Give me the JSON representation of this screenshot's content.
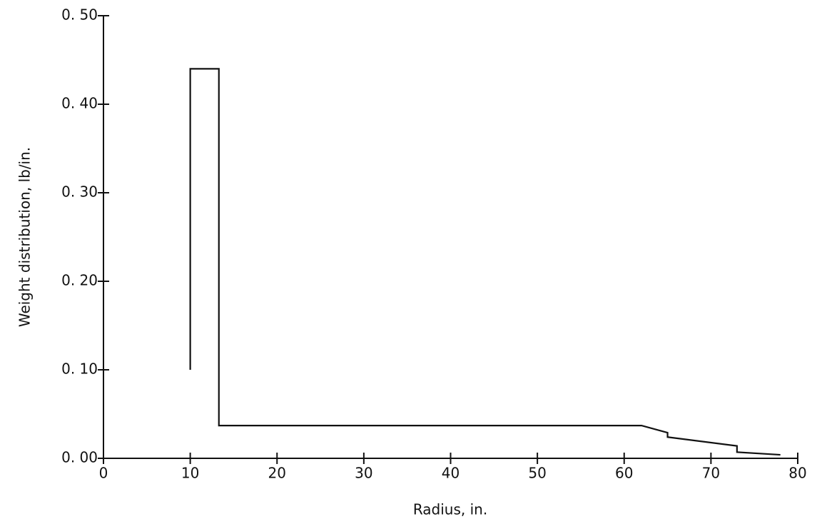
{
  "chart_data": {
    "type": "line",
    "x_label": "Radius, in.",
    "y_label": "Weight distribution, lb/in.",
    "xlim": [
      0,
      80
    ],
    "ylim": [
      0,
      0.5
    ],
    "xticks": [
      0,
      10,
      20,
      30,
      40,
      50,
      60,
      70,
      80
    ],
    "yticks": [
      {
        "value": 0,
        "label": "0. 00"
      },
      {
        "value": 0.1,
        "label": "0. 10"
      },
      {
        "value": 0.2,
        "label": "0. 20"
      },
      {
        "value": 0.3,
        "label": "0. 30"
      },
      {
        "value": 0.4,
        "label": "0. 40"
      },
      {
        "value": 0.5,
        "label": "0. 50"
      }
    ],
    "color": "#111111",
    "x": [
      10,
      10,
      13.3,
      13.3,
      62,
      65,
      65,
      73,
      73,
      78
    ],
    "values": [
      0.1,
      0.44,
      0.44,
      0.037,
      0.037,
      0.029,
      0.024,
      0.014,
      0.007,
      0.004
    ]
  }
}
